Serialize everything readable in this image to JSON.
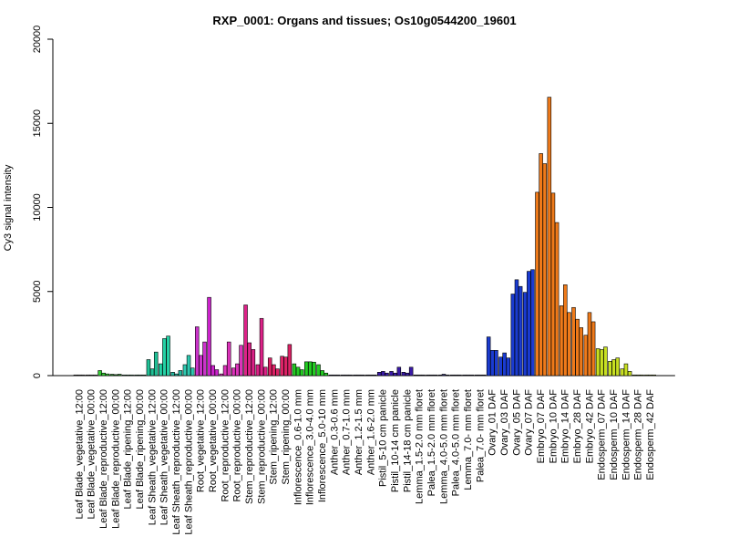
{
  "chart_data": {
    "type": "bar",
    "title": "RXP_0001: Organs and tissues; Os10g0544200_19601",
    "ylabel": "Cy3 signal intensity",
    "xlabel": "",
    "ylim": [
      0,
      20000
    ],
    "yticks": [
      0,
      5000,
      10000,
      15000,
      20000
    ],
    "grid": false,
    "legend": "none",
    "groups": [
      {
        "label": "Leaf Blade_vegetative_12:00",
        "color": "#808080",
        "values": [
          40,
          40,
          40
        ]
      },
      {
        "label": "Leaf Blade_vegetative_00:00",
        "color": "#808080",
        "values": [
          40,
          40,
          40
        ]
      },
      {
        "label": "Leaf Blade_reproductive_12:00",
        "color": "#33cc33",
        "values": [
          300,
          150,
          100
        ]
      },
      {
        "label": "Leaf Blade_reproductive_00:00",
        "color": "#1f8f1f",
        "values": [
          80,
          60,
          80
        ]
      },
      {
        "label": "Leaf Blade_ripening_12:00",
        "color": "#40d27a",
        "values": [
          40,
          40,
          40
        ]
      },
      {
        "label": "Leaf Blade_ripening_00:00",
        "color": "#26b86a",
        "values": [
          40,
          40,
          40
        ]
      },
      {
        "label": "Leaf Sheath_vegetative_12:00",
        "color": "#1fc196",
        "values": [
          950,
          400,
          1400
        ]
      },
      {
        "label": "Leaf Sheath_vegetative_00:00",
        "color": "#24d1a5",
        "values": [
          700,
          2200,
          2350
        ]
      },
      {
        "label": "Leaf Sheath_reproductive_12:00",
        "color": "#23b8a0",
        "values": [
          200,
          100,
          300
        ]
      },
      {
        "label": "Leaf Sheath_reproductive_00:00",
        "color": "#2ec9b0",
        "values": [
          650,
          1200,
          450
        ]
      },
      {
        "label": "Root_vegetative_12:00",
        "color": "#cc33cc",
        "values": [
          2900,
          1200,
          2000
        ]
      },
      {
        "label": "Root_vegetative_00:00",
        "color": "#cc22cc",
        "values": [
          4650,
          600,
          350
        ]
      },
      {
        "label": "Root_reproductive_12:00",
        "color": "#dd33bb",
        "values": [
          100,
          600,
          2000
        ]
      },
      {
        "label": "Root_reproductive_00:00",
        "color": "#dd33bb",
        "values": [
          450,
          700,
          1800
        ]
      },
      {
        "label": "Stem_reproductive_12:00",
        "color": "#dd2288",
        "values": [
          4200,
          1950,
          1550
        ]
      },
      {
        "label": "Stem_reproductive_00:00",
        "color": "#dd2288",
        "values": [
          650,
          3400,
          500
        ]
      },
      {
        "label": "Stem_ripening_12:00",
        "color": "#dd2266",
        "values": [
          1050,
          650,
          400
        ]
      },
      {
        "label": "Stem_ripening_00:00",
        "color": "#dd2266",
        "values": [
          1150,
          1100,
          1850
        ]
      },
      {
        "label": "Inflorescence_0.6-1.0 mm",
        "color": "#22cc22",
        "values": [
          700,
          500,
          350
        ]
      },
      {
        "label": "Inflorescence_3.0-4.0 mm",
        "color": "#22cc22",
        "values": [
          820,
          820,
          800
        ]
      },
      {
        "label": "Inflorescence_5.0-10 mm",
        "color": "#22cc22",
        "values": [
          650,
          300,
          150
        ]
      },
      {
        "label": "Anther_0.3-0.6 mm",
        "color": "#1a1a5e",
        "values": [
          40,
          40,
          40
        ]
      },
      {
        "label": "Anther_0.7-1.0 mm",
        "color": "#1a1a5e",
        "values": [
          40,
          40,
          40
        ]
      },
      {
        "label": "Anther_1.2-1.5 mm",
        "color": "#1a1a5e",
        "values": [
          40,
          40,
          40
        ]
      },
      {
        "label": "Anther_1.6-2.0 mm",
        "color": "#1a1a5e",
        "values": [
          40,
          40,
          40
        ]
      },
      {
        "label": "Pistil_5-10 cm panicle",
        "color": "#3a1aa8",
        "values": [
          200,
          250,
          150
        ]
      },
      {
        "label": "Pistil_10-14 cm panicle",
        "color": "#3a1aa8",
        "values": [
          250,
          150,
          500
        ]
      },
      {
        "label": "Pistil_14-18 cm panicle",
        "color": "#3a1aa8",
        "values": [
          200,
          150,
          500
        ]
      },
      {
        "label": "Lemma_1.5-2.0 mm floret",
        "color": "#22226e",
        "values": [
          40,
          40,
          40
        ]
      },
      {
        "label": "Palea_1.5-2.0 mm floret",
        "color": "#22226e",
        "values": [
          40,
          40,
          40
        ]
      },
      {
        "label": "Lemma_4.0-5.0 mm floret",
        "color": "#22226e",
        "values": [
          40,
          80,
          40
        ]
      },
      {
        "label": "Palea_4.0-5.0 mm floret",
        "color": "#22226e",
        "values": [
          40,
          40,
          40
        ]
      },
      {
        "label": "Lemma_7.0- mm floret",
        "color": "#22226e",
        "values": [
          40,
          40,
          40
        ]
      },
      {
        "label": "Palea_7.0- mm floret",
        "color": "#22226e",
        "values": [
          40,
          40,
          40
        ]
      },
      {
        "label": "Ovary_01 DAF",
        "color": "#1a3bd1",
        "values": [
          2300,
          1500,
          1500
        ]
      },
      {
        "label": "Ovary_03 DAF",
        "color": "#1a3bd1",
        "values": [
          1100,
          1350,
          1050
        ]
      },
      {
        "label": "Ovary_05 DAF",
        "color": "#1a3bd1",
        "values": [
          4850,
          5700,
          5300
        ]
      },
      {
        "label": "Ovary_07 DAF",
        "color": "#1a3bd1",
        "values": [
          4950,
          6200,
          6300
        ]
      },
      {
        "label": "Embryo_07 DAF",
        "color": "#ef7a1a",
        "values": [
          10900,
          13200,
          12600
        ]
      },
      {
        "label": "Embryo_10 DAF",
        "color": "#ef7a1a",
        "values": [
          16550,
          10850,
          9100
        ]
      },
      {
        "label": "Embryo_14 DAF",
        "color": "#ef7a1a",
        "values": [
          4150,
          5400,
          3750
        ]
      },
      {
        "label": "Embryo_28 DAF",
        "color": "#ef7a1a",
        "values": [
          4050,
          3350,
          2850
        ]
      },
      {
        "label": "Embryo_42 DAF",
        "color": "#ef7a1a",
        "values": [
          2400,
          3750,
          3200
        ]
      },
      {
        "label": "Endosperm_07 DAF",
        "color": "#c8e021",
        "values": [
          1600,
          1550,
          1700
        ]
      },
      {
        "label": "Endosperm_10 DAF",
        "color": "#c8e021",
        "values": [
          850,
          950,
          1050
        ]
      },
      {
        "label": "Endosperm_14 DAF",
        "color": "#c8e021",
        "values": [
          400,
          700,
          250
        ]
      },
      {
        "label": "Endosperm_28 DAF",
        "color": "#c8e021",
        "values": [
          40,
          40,
          40
        ]
      },
      {
        "label": "Endosperm_42 DAF",
        "color": "#c8e021",
        "values": [
          40,
          40,
          40
        ]
      }
    ]
  }
}
